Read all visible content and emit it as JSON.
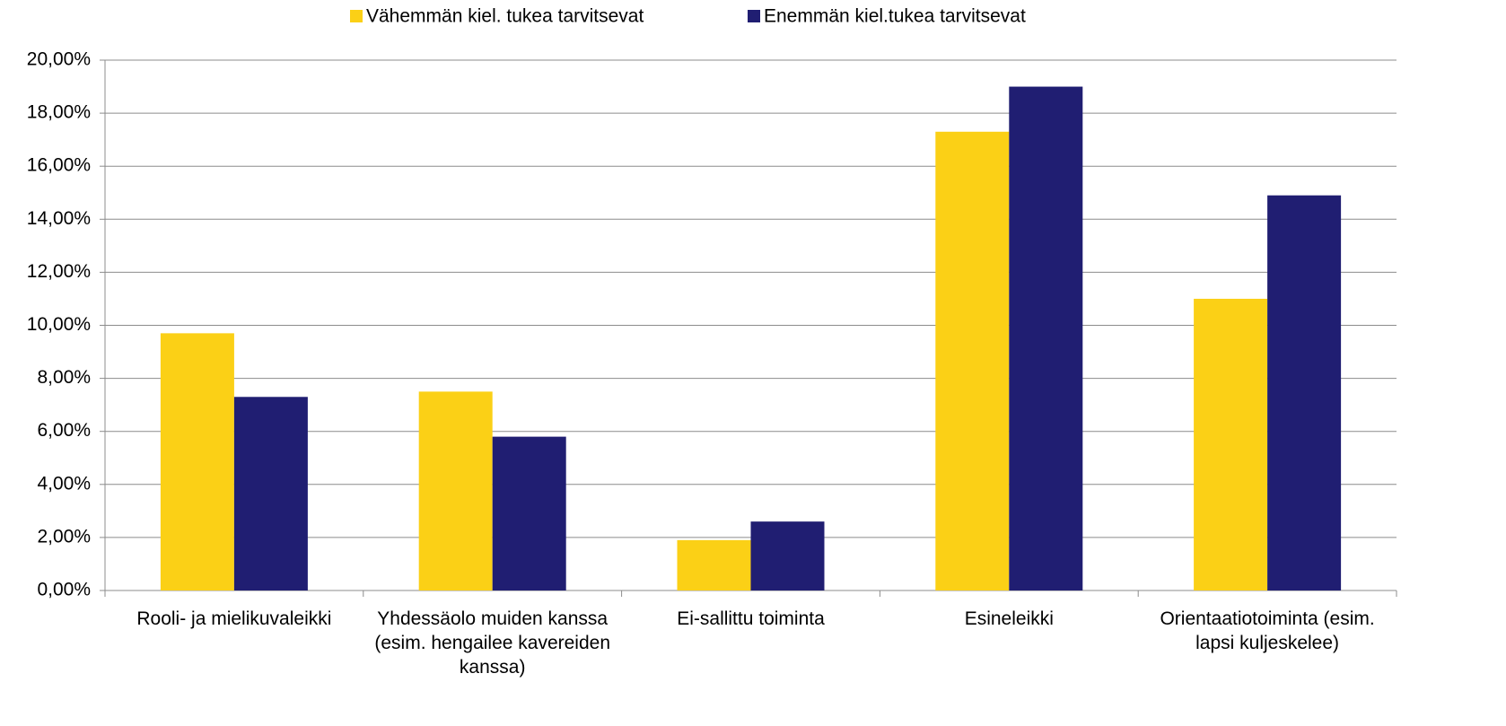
{
  "chart_data": {
    "type": "bar",
    "categories": [
      "Rooli- ja mielikuvaleikki",
      "Yhdessäolo muiden kanssa (esim. hengailee kavereiden kanssa)",
      "Ei-sallittu toiminta",
      "Esineleikki",
      "Orientaatiotoiminta (esim. lapsi kuljeskelee)"
    ],
    "series": [
      {
        "name": "Vähemmän kiel. tukea tarvitsevat",
        "color": "#fbd016",
        "values": [
          9.7,
          7.5,
          1.9,
          17.3,
          11.0
        ]
      },
      {
        "name": "Enemmän kiel.tukea tarvitsevat",
        "color": "#201e72",
        "values": [
          7.3,
          5.8,
          2.6,
          19.0,
          14.9
        ]
      }
    ],
    "ylim": [
      0,
      20
    ],
    "yticks": [
      {
        "value": 0,
        "label": "0,00%"
      },
      {
        "value": 2,
        "label": "2,00%"
      },
      {
        "value": 4,
        "label": "4,00%"
      },
      {
        "value": 6,
        "label": "6,00%"
      },
      {
        "value": 8,
        "label": "8,00%"
      },
      {
        "value": 10,
        "label": "10,00%"
      },
      {
        "value": 12,
        "label": "12,00%"
      },
      {
        "value": 14,
        "label": "14,00%"
      },
      {
        "value": 16,
        "label": "16,00%"
      },
      {
        "value": 18,
        "label": "18,00%"
      },
      {
        "value": 20,
        "label": "20,00%"
      }
    ],
    "grid": true,
    "legend": "top"
  }
}
